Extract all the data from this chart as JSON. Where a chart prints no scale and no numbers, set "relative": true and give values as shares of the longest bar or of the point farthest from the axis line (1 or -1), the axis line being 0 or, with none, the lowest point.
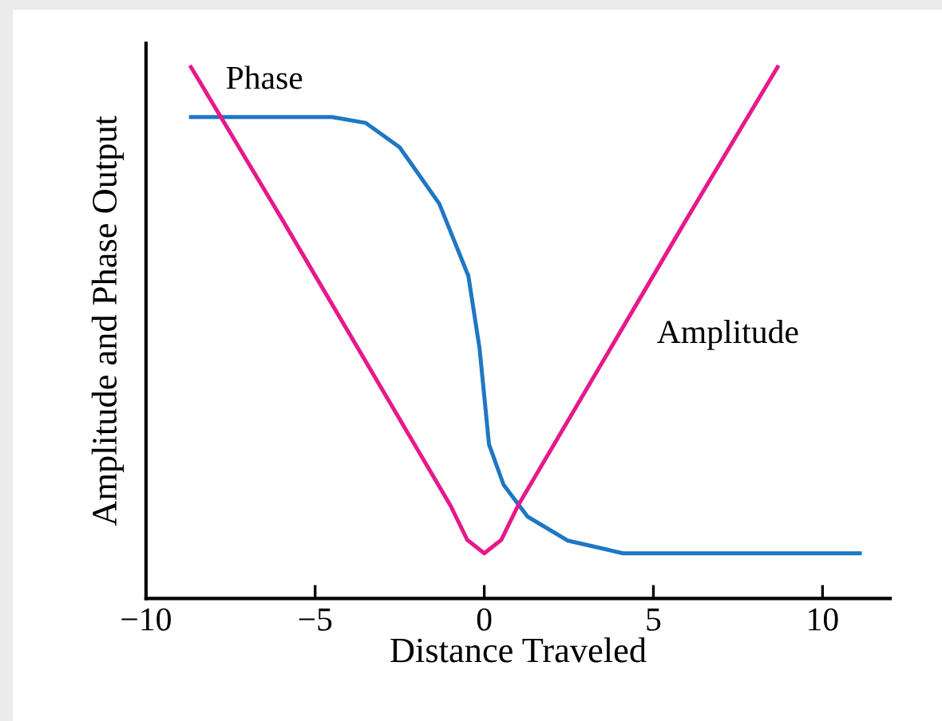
{
  "chart_data": {
    "type": "line",
    "relative": true,
    "xlabel": "Distance Traveled",
    "ylabel": "Amplitude and Phase Output",
    "xlim": [
      -10,
      12
    ],
    "xticks": [
      {
        "value": -10,
        "label": "−10"
      },
      {
        "value": -5,
        "label": "−5"
      },
      0,
      5,
      10
    ],
    "tick_labels": "x",
    "grid": false,
    "legend": false,
    "marker": "none",
    "line_style": "solid",
    "series": [
      {
        "name": "Phase",
        "color": "#1f77c4",
        "x": [
          -8.67,
          -6,
          -4.5,
          -3.5,
          -2.5,
          -1.33,
          -0.47,
          -0.14,
          0,
          0.14,
          0.57,
          1.28,
          2.46,
          4.1,
          11.1
        ],
        "values": [
          0.906,
          0.906,
          0.906,
          0.895,
          0.849,
          0.743,
          0.607,
          0.471,
          0.381,
          0.29,
          0.214,
          0.154,
          0.109,
          0.085,
          0.085
        ]
      },
      {
        "name": "Amplitude",
        "color": "#e6198c",
        "x": [
          -8.67,
          -6,
          -1,
          -0.5,
          0,
          0.5,
          1,
          6,
          8.67
        ],
        "values": [
          1.0,
          0.716,
          0.175,
          0.11,
          0.085,
          0.11,
          0.175,
          0.716,
          1.0
        ]
      }
    ]
  }
}
